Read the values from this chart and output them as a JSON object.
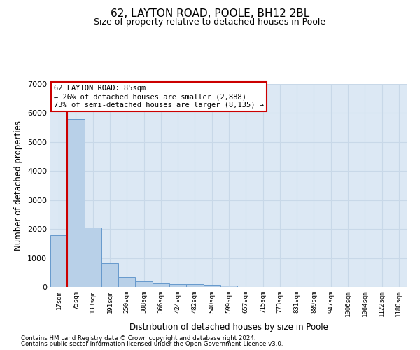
{
  "title1": "62, LAYTON ROAD, POOLE, BH12 2BL",
  "title2": "Size of property relative to detached houses in Poole",
  "xlabel": "Distribution of detached houses by size in Poole",
  "ylabel": "Number of detached properties",
  "footer1": "Contains HM Land Registry data © Crown copyright and database right 2024.",
  "footer2": "Contains public sector information licensed under the Open Government Licence v3.0.",
  "bar_labels": [
    "17sqm",
    "75sqm",
    "133sqm",
    "191sqm",
    "250sqm",
    "308sqm",
    "366sqm",
    "424sqm",
    "482sqm",
    "540sqm",
    "599sqm",
    "657sqm",
    "715sqm",
    "773sqm",
    "831sqm",
    "889sqm",
    "947sqm",
    "1006sqm",
    "1064sqm",
    "1122sqm",
    "1180sqm"
  ],
  "bar_values": [
    1780,
    5800,
    2060,
    820,
    350,
    185,
    115,
    105,
    85,
    70,
    60,
    0,
    0,
    0,
    0,
    0,
    0,
    0,
    0,
    0,
    0
  ],
  "bar_color": "#b8d0e8",
  "bar_edge_color": "#6699cc",
  "ylim": [
    0,
    7000
  ],
  "yticks": [
    0,
    1000,
    2000,
    3000,
    4000,
    5000,
    6000,
    7000
  ],
  "property_line_color": "#cc0000",
  "annotation_line1": "62 LAYTON ROAD: 85sqm",
  "annotation_line2": "← 26% of detached houses are smaller (2,888)",
  "annotation_line3": "73% of semi-detached houses are larger (8,135) →",
  "annotation_box_color": "#ffffff",
  "annotation_box_edge_color": "#cc0000",
  "grid_color": "#c8d8e8",
  "background_color": "#dce8f4",
  "title1_fontsize": 11,
  "title2_fontsize": 9
}
